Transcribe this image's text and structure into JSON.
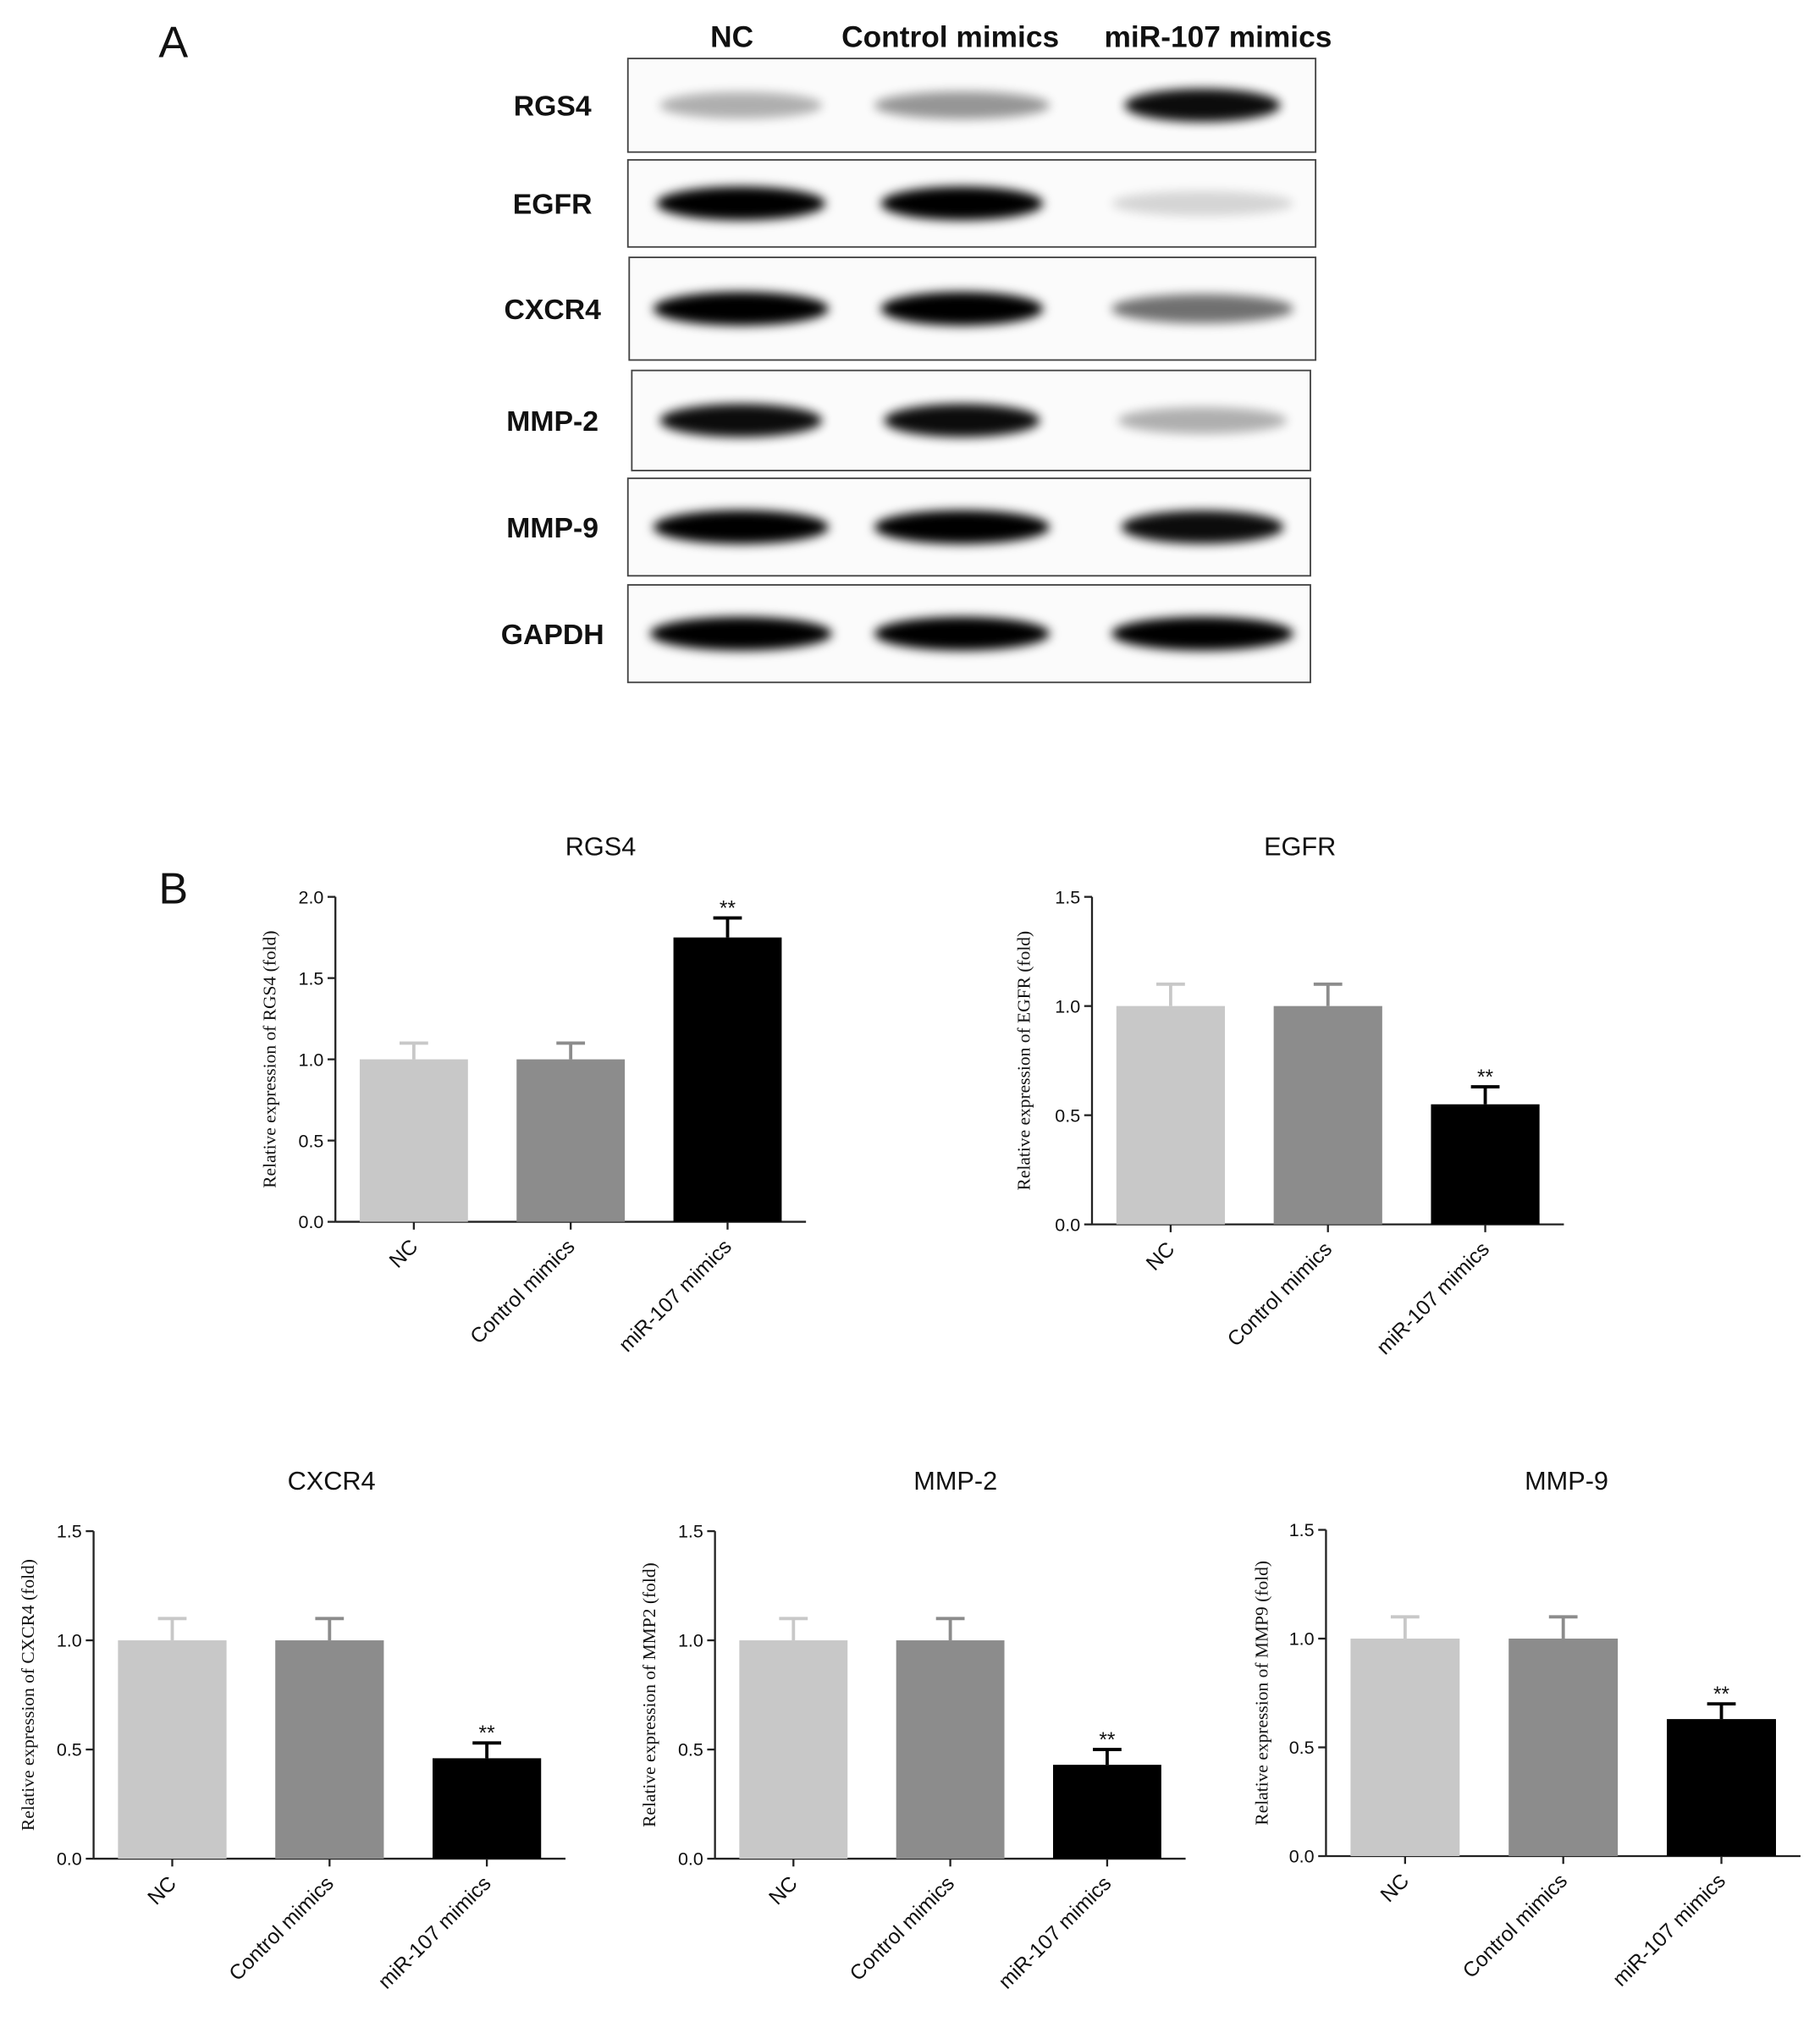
{
  "panels": [
    "A",
    "B"
  ],
  "blot": {
    "lanes": [
      "NC",
      "Control mimics",
      "miR-107 mimics"
    ],
    "rows": [
      "RGS4",
      "EGFR",
      "CXCR4",
      "MMP-2",
      "MMP-9",
      "GAPDH"
    ]
  },
  "chart_data": [
    {
      "type": "bar",
      "title": "RGS4",
      "y_label": "Relative expression of  RGS4 (fold)",
      "categories": [
        "NC",
        "Control mimics",
        "miR-107 mimics"
      ],
      "values": [
        1.0,
        1.0,
        1.75
      ],
      "errors": [
        0.1,
        0.1,
        0.12
      ],
      "significance": [
        null,
        null,
        "**"
      ],
      "colors": [
        "#c8c8c8",
        "#8c8c8c",
        "#000000"
      ],
      "ylim": [
        0,
        2
      ],
      "yticks": [
        {
          "value": 0,
          "label": "0.0"
        },
        {
          "value": 0.5,
          "label": "0.5"
        },
        {
          "value": 1,
          "label": "1.0"
        },
        {
          "value": 1.5,
          "label": "1.5"
        },
        {
          "value": 2,
          "label": "2.0"
        }
      ]
    },
    {
      "type": "bar",
      "title": "EGFR",
      "y_label": "Relative  expression of EGFR (fold)",
      "categories": [
        "NC",
        "Control mimics",
        "miR-107 mimics"
      ],
      "values": [
        1.0,
        1.0,
        0.55
      ],
      "errors": [
        0.1,
        0.1,
        0.08
      ],
      "significance": [
        null,
        null,
        "**"
      ],
      "colors": [
        "#c8c8c8",
        "#8c8c8c",
        "#000000"
      ],
      "ylim": [
        0,
        1.5
      ],
      "yticks": [
        {
          "value": 0,
          "label": "0.0"
        },
        {
          "value": 0.5,
          "label": "0.5"
        },
        {
          "value": 1,
          "label": "1.0"
        },
        {
          "value": 1.5,
          "label": "1.5"
        }
      ]
    },
    {
      "type": "bar",
      "title": "CXCR4",
      "y_label": "Relative  expression of CXCR4 (fold)",
      "categories": [
        "NC",
        "Control mimics",
        "miR-107 mimics"
      ],
      "values": [
        1.0,
        1.0,
        0.46
      ],
      "errors": [
        0.1,
        0.1,
        0.07
      ],
      "significance": [
        null,
        null,
        "**"
      ],
      "colors": [
        "#c8c8c8",
        "#8c8c8c",
        "#000000"
      ],
      "ylim": [
        0,
        1.5
      ],
      "yticks": [
        {
          "value": 0,
          "label": "0.0"
        },
        {
          "value": 0.5,
          "label": "0.5"
        },
        {
          "value": 1,
          "label": "1.0"
        },
        {
          "value": 1.5,
          "label": "1.5"
        }
      ]
    },
    {
      "type": "bar",
      "title": "MMP-2",
      "y_label": "Relative  expression of MMP2 (fold)",
      "categories": [
        "NC",
        "Control mimics",
        "miR-107 mimics"
      ],
      "values": [
        1.0,
        1.0,
        0.43
      ],
      "errors": [
        0.1,
        0.1,
        0.07
      ],
      "significance": [
        null,
        null,
        "**"
      ],
      "colors": [
        "#c8c8c8",
        "#8c8c8c",
        "#000000"
      ],
      "ylim": [
        0,
        1.5
      ],
      "yticks": [
        {
          "value": 0,
          "label": "0.0"
        },
        {
          "value": 0.5,
          "label": "0.5"
        },
        {
          "value": 1,
          "label": "1.0"
        },
        {
          "value": 1.5,
          "label": "1.5"
        }
      ]
    },
    {
      "type": "bar",
      "title": "MMP-9",
      "y_label": "Relative expression of MMP9 (fold)",
      "categories": [
        "NC",
        "Control mimics",
        "miR-107 mimics"
      ],
      "values": [
        1.0,
        1.0,
        0.63
      ],
      "errors": [
        0.1,
        0.1,
        0.07
      ],
      "significance": [
        null,
        null,
        "**"
      ],
      "colors": [
        "#c8c8c8",
        "#8c8c8c",
        "#000000"
      ],
      "ylim": [
        0,
        1.5
      ],
      "yticks": [
        {
          "value": 0,
          "label": "0.0"
        },
        {
          "value": 0.5,
          "label": "0.5"
        },
        {
          "value": 1,
          "label": "1.0"
        },
        {
          "value": 1.5,
          "label": "1.5"
        }
      ]
    }
  ]
}
